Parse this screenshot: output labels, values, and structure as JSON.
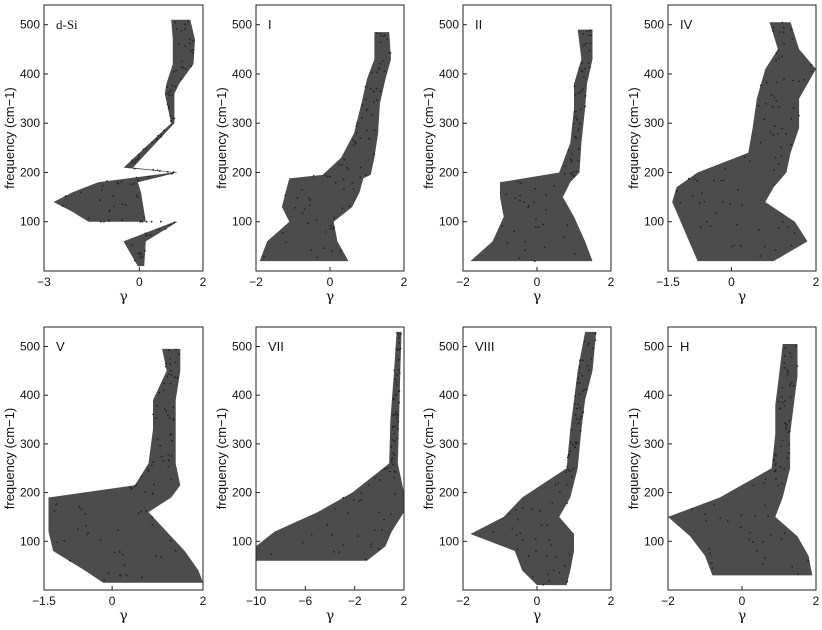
{
  "chart_data": [
    {
      "type": "scatter",
      "title": "d-Si",
      "xlabel": "γ",
      "ylabel": "frequency (cm−1)",
      "xlim": [
        -3,
        2
      ],
      "ylim": [
        0,
        540
      ],
      "xticks": [
        -3,
        0,
        2
      ],
      "yticks": [
        100,
        200,
        300,
        400,
        500
      ],
      "series": [
        {
          "values": [
            {
              "y": 510,
              "x_min": 1.0,
              "x_max": 1.6
            },
            {
              "y": 470,
              "x_min": 1.05,
              "x_max": 1.75
            },
            {
              "y": 420,
              "x_min": 1.05,
              "x_max": 1.7
            },
            {
              "y": 380,
              "x_min": 0.85,
              "x_max": 1.25
            },
            {
              "y": 360,
              "x_min": 0.8,
              "x_max": 1.1
            },
            {
              "y": 300,
              "x_min": 1.0,
              "x_max": 1.1
            },
            {
              "y": 200,
              "x_min": 1.05,
              "x_max": 1.2
            },
            {
              "y": 100,
              "x_min": 1.1,
              "x_max": 1.2
            },
            {
              "y": 210,
              "x_min": -0.5,
              "x_max": -0.2
            },
            {
              "y": 180,
              "x_min": -1.3,
              "x_max": -0.05
            },
            {
              "y": 160,
              "x_min": -2.1,
              "x_max": 0.05
            },
            {
              "y": 140,
              "x_min": -2.7,
              "x_max": 0.1
            },
            {
              "y": 120,
              "x_min": -2.1,
              "x_max": 0.15
            },
            {
              "y": 100,
              "x_min": -1.6,
              "x_max": 0.2
            },
            {
              "y": 60,
              "x_min": -0.5,
              "x_max": 0.2
            },
            {
              "y": 10,
              "x_min": -0.05,
              "x_max": 0.15
            }
          ]
        }
      ]
    },
    {
      "type": "scatter",
      "title": "I",
      "xlabel": "γ",
      "ylabel": "frequency (cm−1)",
      "xlim": [
        -2,
        2
      ],
      "ylim": [
        0,
        540
      ],
      "xticks": [
        -2,
        0,
        2
      ],
      "yticks": [
        100,
        200,
        300,
        400,
        500
      ],
      "series": [
        {
          "values": [
            {
              "y": 485,
              "x_min": 1.2,
              "x_max": 1.6
            },
            {
              "y": 430,
              "x_min": 1.2,
              "x_max": 1.65
            },
            {
              "y": 390,
              "x_min": 1.0,
              "x_max": 1.5
            },
            {
              "y": 340,
              "x_min": 0.85,
              "x_max": 1.35
            },
            {
              "y": 280,
              "x_min": 0.65,
              "x_max": 1.3
            },
            {
              "y": 230,
              "x_min": 0.3,
              "x_max": 1.2
            },
            {
              "y": 195,
              "x_min": -0.2,
              "x_max": 1.1
            },
            {
              "y": 188,
              "x_min": -1.1,
              "x_max": 0.9
            },
            {
              "y": 160,
              "x_min": -1.2,
              "x_max": 0.8
            },
            {
              "y": 130,
              "x_min": -1.3,
              "x_max": 0.6
            },
            {
              "y": 100,
              "x_min": -1.1,
              "x_max": 0.1
            },
            {
              "y": 60,
              "x_min": -1.7,
              "x_max": 0.2
            },
            {
              "y": 20,
              "x_min": -1.9,
              "x_max": 0.5
            }
          ]
        }
      ]
    },
    {
      "type": "scatter",
      "title": "II",
      "xlabel": "γ",
      "ylabel": "frequency (cm−1)",
      "xlim": [
        -2,
        2
      ],
      "ylim": [
        0,
        540
      ],
      "xticks": [
        -2,
        0,
        2
      ],
      "yticks": [
        100,
        200,
        300,
        400,
        500
      ],
      "series": [
        {
          "values": [
            {
              "y": 490,
              "x_min": 1.1,
              "x_max": 1.5
            },
            {
              "y": 430,
              "x_min": 1.2,
              "x_max": 1.5
            },
            {
              "y": 380,
              "x_min": 1.0,
              "x_max": 1.35
            },
            {
              "y": 330,
              "x_min": 1.0,
              "x_max": 1.3
            },
            {
              "y": 260,
              "x_min": 0.9,
              "x_max": 1.2
            },
            {
              "y": 200,
              "x_min": 0.6,
              "x_max": 1.15
            },
            {
              "y": 180,
              "x_min": -1.0,
              "x_max": 0.9
            },
            {
              "y": 150,
              "x_min": -1.0,
              "x_max": 0.7
            },
            {
              "y": 110,
              "x_min": -0.9,
              "x_max": 1.0
            },
            {
              "y": 60,
              "x_min": -1.2,
              "x_max": 1.3
            },
            {
              "y": 20,
              "x_min": -1.8,
              "x_max": 1.5
            }
          ]
        }
      ]
    },
    {
      "type": "scatter",
      "title": "IV",
      "xlabel": "γ",
      "ylabel": "frequency (cm−1)",
      "xlim": [
        -1.5,
        2
      ],
      "ylim": [
        0,
        540
      ],
      "xticks": [
        -1.5,
        0,
        2
      ],
      "yticks": [
        100,
        200,
        300,
        400,
        500
      ],
      "series": [
        {
          "values": [
            {
              "y": 505,
              "x_min": 0.9,
              "x_max": 1.4
            },
            {
              "y": 450,
              "x_min": 1.1,
              "x_max": 1.6
            },
            {
              "y": 410,
              "x_min": 0.8,
              "x_max": 2.0
            },
            {
              "y": 350,
              "x_min": 0.6,
              "x_max": 1.6
            },
            {
              "y": 290,
              "x_min": 0.5,
              "x_max": 1.6
            },
            {
              "y": 240,
              "x_min": 0.4,
              "x_max": 1.4
            },
            {
              "y": 200,
              "x_min": -0.8,
              "x_max": 1.3
            },
            {
              "y": 170,
              "x_min": -1.3,
              "x_max": 1.0
            },
            {
              "y": 140,
              "x_min": -1.4,
              "x_max": 0.8
            },
            {
              "y": 100,
              "x_min": -1.2,
              "x_max": 1.5
            },
            {
              "y": 60,
              "x_min": -1.0,
              "x_max": 1.8
            },
            {
              "y": 20,
              "x_min": -0.8,
              "x_max": 1.0
            }
          ]
        }
      ]
    },
    {
      "type": "scatter",
      "title": "V",
      "xlabel": "γ",
      "ylabel": "frequency (cm−1)",
      "xlim": [
        -1.5,
        2
      ],
      "ylim": [
        0,
        540
      ],
      "xticks": [
        -1.5,
        0,
        2
      ],
      "yticks": [
        100,
        200,
        300,
        400,
        500
      ],
      "series": [
        {
          "values": [
            {
              "y": 495,
              "x_min": 1.1,
              "x_max": 1.5
            },
            {
              "y": 450,
              "x_min": 1.2,
              "x_max": 1.5
            },
            {
              "y": 390,
              "x_min": 0.9,
              "x_max": 1.4
            },
            {
              "y": 330,
              "x_min": 0.9,
              "x_max": 1.4
            },
            {
              "y": 260,
              "x_min": 0.8,
              "x_max": 1.4
            },
            {
              "y": 215,
              "x_min": 0.5,
              "x_max": 1.5
            },
            {
              "y": 190,
              "x_min": -1.4,
              "x_max": 1.3
            },
            {
              "y": 160,
              "x_min": -1.4,
              "x_max": 0.8
            },
            {
              "y": 120,
              "x_min": -1.4,
              "x_max": 1.2
            },
            {
              "y": 80,
              "x_min": -1.3,
              "x_max": 1.6
            },
            {
              "y": 40,
              "x_min": -0.6,
              "x_max": 1.9
            },
            {
              "y": 15,
              "x_min": -0.2,
              "x_max": 2.0
            }
          ]
        }
      ]
    },
    {
      "type": "scatter",
      "title": "VII",
      "xlabel": "γ",
      "ylabel": "frequency (cm−1)",
      "xlim": [
        -10,
        2
      ],
      "ylim": [
        0,
        540
      ],
      "xticks": [
        -10,
        -6,
        -2,
        2
      ],
      "yticks": [
        100,
        200,
        300,
        400,
        500
      ],
      "series": [
        {
          "values": [
            {
              "y": 530,
              "x_min": 1.4,
              "x_max": 1.8
            },
            {
              "y": 450,
              "x_min": 1.2,
              "x_max": 1.7
            },
            {
              "y": 350,
              "x_min": 0.9,
              "x_max": 1.6
            },
            {
              "y": 260,
              "x_min": 0.8,
              "x_max": 1.5
            },
            {
              "y": 200,
              "x_min": -2.2,
              "x_max": 2.0
            },
            {
              "y": 160,
              "x_min": -5.0,
              "x_max": 2.0
            },
            {
              "y": 120,
              "x_min": -8.5,
              "x_max": 1.0
            },
            {
              "y": 90,
              "x_min": -10.0,
              "x_max": 0.5
            },
            {
              "y": 60,
              "x_min": -10.0,
              "x_max": -1.0
            }
          ]
        }
      ]
    },
    {
      "type": "scatter",
      "title": "VIII",
      "xlabel": "γ",
      "ylabel": "frequency (cm−1)",
      "xlim": [
        -2,
        2
      ],
      "ylim": [
        0,
        540
      ],
      "xticks": [
        -2,
        0,
        2
      ],
      "yticks": [
        100,
        200,
        300,
        400,
        500
      ],
      "series": [
        {
          "values": [
            {
              "y": 530,
              "x_min": 1.3,
              "x_max": 1.6
            },
            {
              "y": 450,
              "x_min": 1.1,
              "x_max": 1.5
            },
            {
              "y": 390,
              "x_min": 1.0,
              "x_max": 1.3
            },
            {
              "y": 330,
              "x_min": 0.9,
              "x_max": 1.2
            },
            {
              "y": 250,
              "x_min": 0.8,
              "x_max": 1.1
            },
            {
              "y": 190,
              "x_min": -0.4,
              "x_max": 0.9
            },
            {
              "y": 150,
              "x_min": -0.9,
              "x_max": 0.6
            },
            {
              "y": 115,
              "x_min": -1.8,
              "x_max": 1.0
            },
            {
              "y": 80,
              "x_min": -0.6,
              "x_max": 1.0
            },
            {
              "y": 40,
              "x_min": -0.4,
              "x_max": 0.9
            },
            {
              "y": 10,
              "x_min": 0.0,
              "x_max": 0.8
            }
          ]
        }
      ]
    },
    {
      "type": "scatter",
      "title": "H",
      "xlabel": "γ",
      "ylabel": "frequency (cm−1)",
      "xlim": [
        -2,
        2
      ],
      "ylim": [
        0,
        540
      ],
      "xticks": [
        -2,
        0,
        2
      ],
      "yticks": [
        100,
        200,
        300,
        400,
        500
      ],
      "series": [
        {
          "values": [
            {
              "y": 505,
              "x_min": 1.1,
              "x_max": 1.5
            },
            {
              "y": 440,
              "x_min": 1.0,
              "x_max": 1.5
            },
            {
              "y": 380,
              "x_min": 0.9,
              "x_max": 1.4
            },
            {
              "y": 320,
              "x_min": 0.9,
              "x_max": 1.3
            },
            {
              "y": 250,
              "x_min": 0.8,
              "x_max": 1.3
            },
            {
              "y": 190,
              "x_min": -0.6,
              "x_max": 1.1
            },
            {
              "y": 150,
              "x_min": -2.0,
              "x_max": 0.9
            },
            {
              "y": 110,
              "x_min": -1.4,
              "x_max": 1.5
            },
            {
              "y": 70,
              "x_min": -1.0,
              "x_max": 1.8
            },
            {
              "y": 30,
              "x_min": -0.8,
              "x_max": 1.9
            }
          ]
        }
      ]
    }
  ]
}
